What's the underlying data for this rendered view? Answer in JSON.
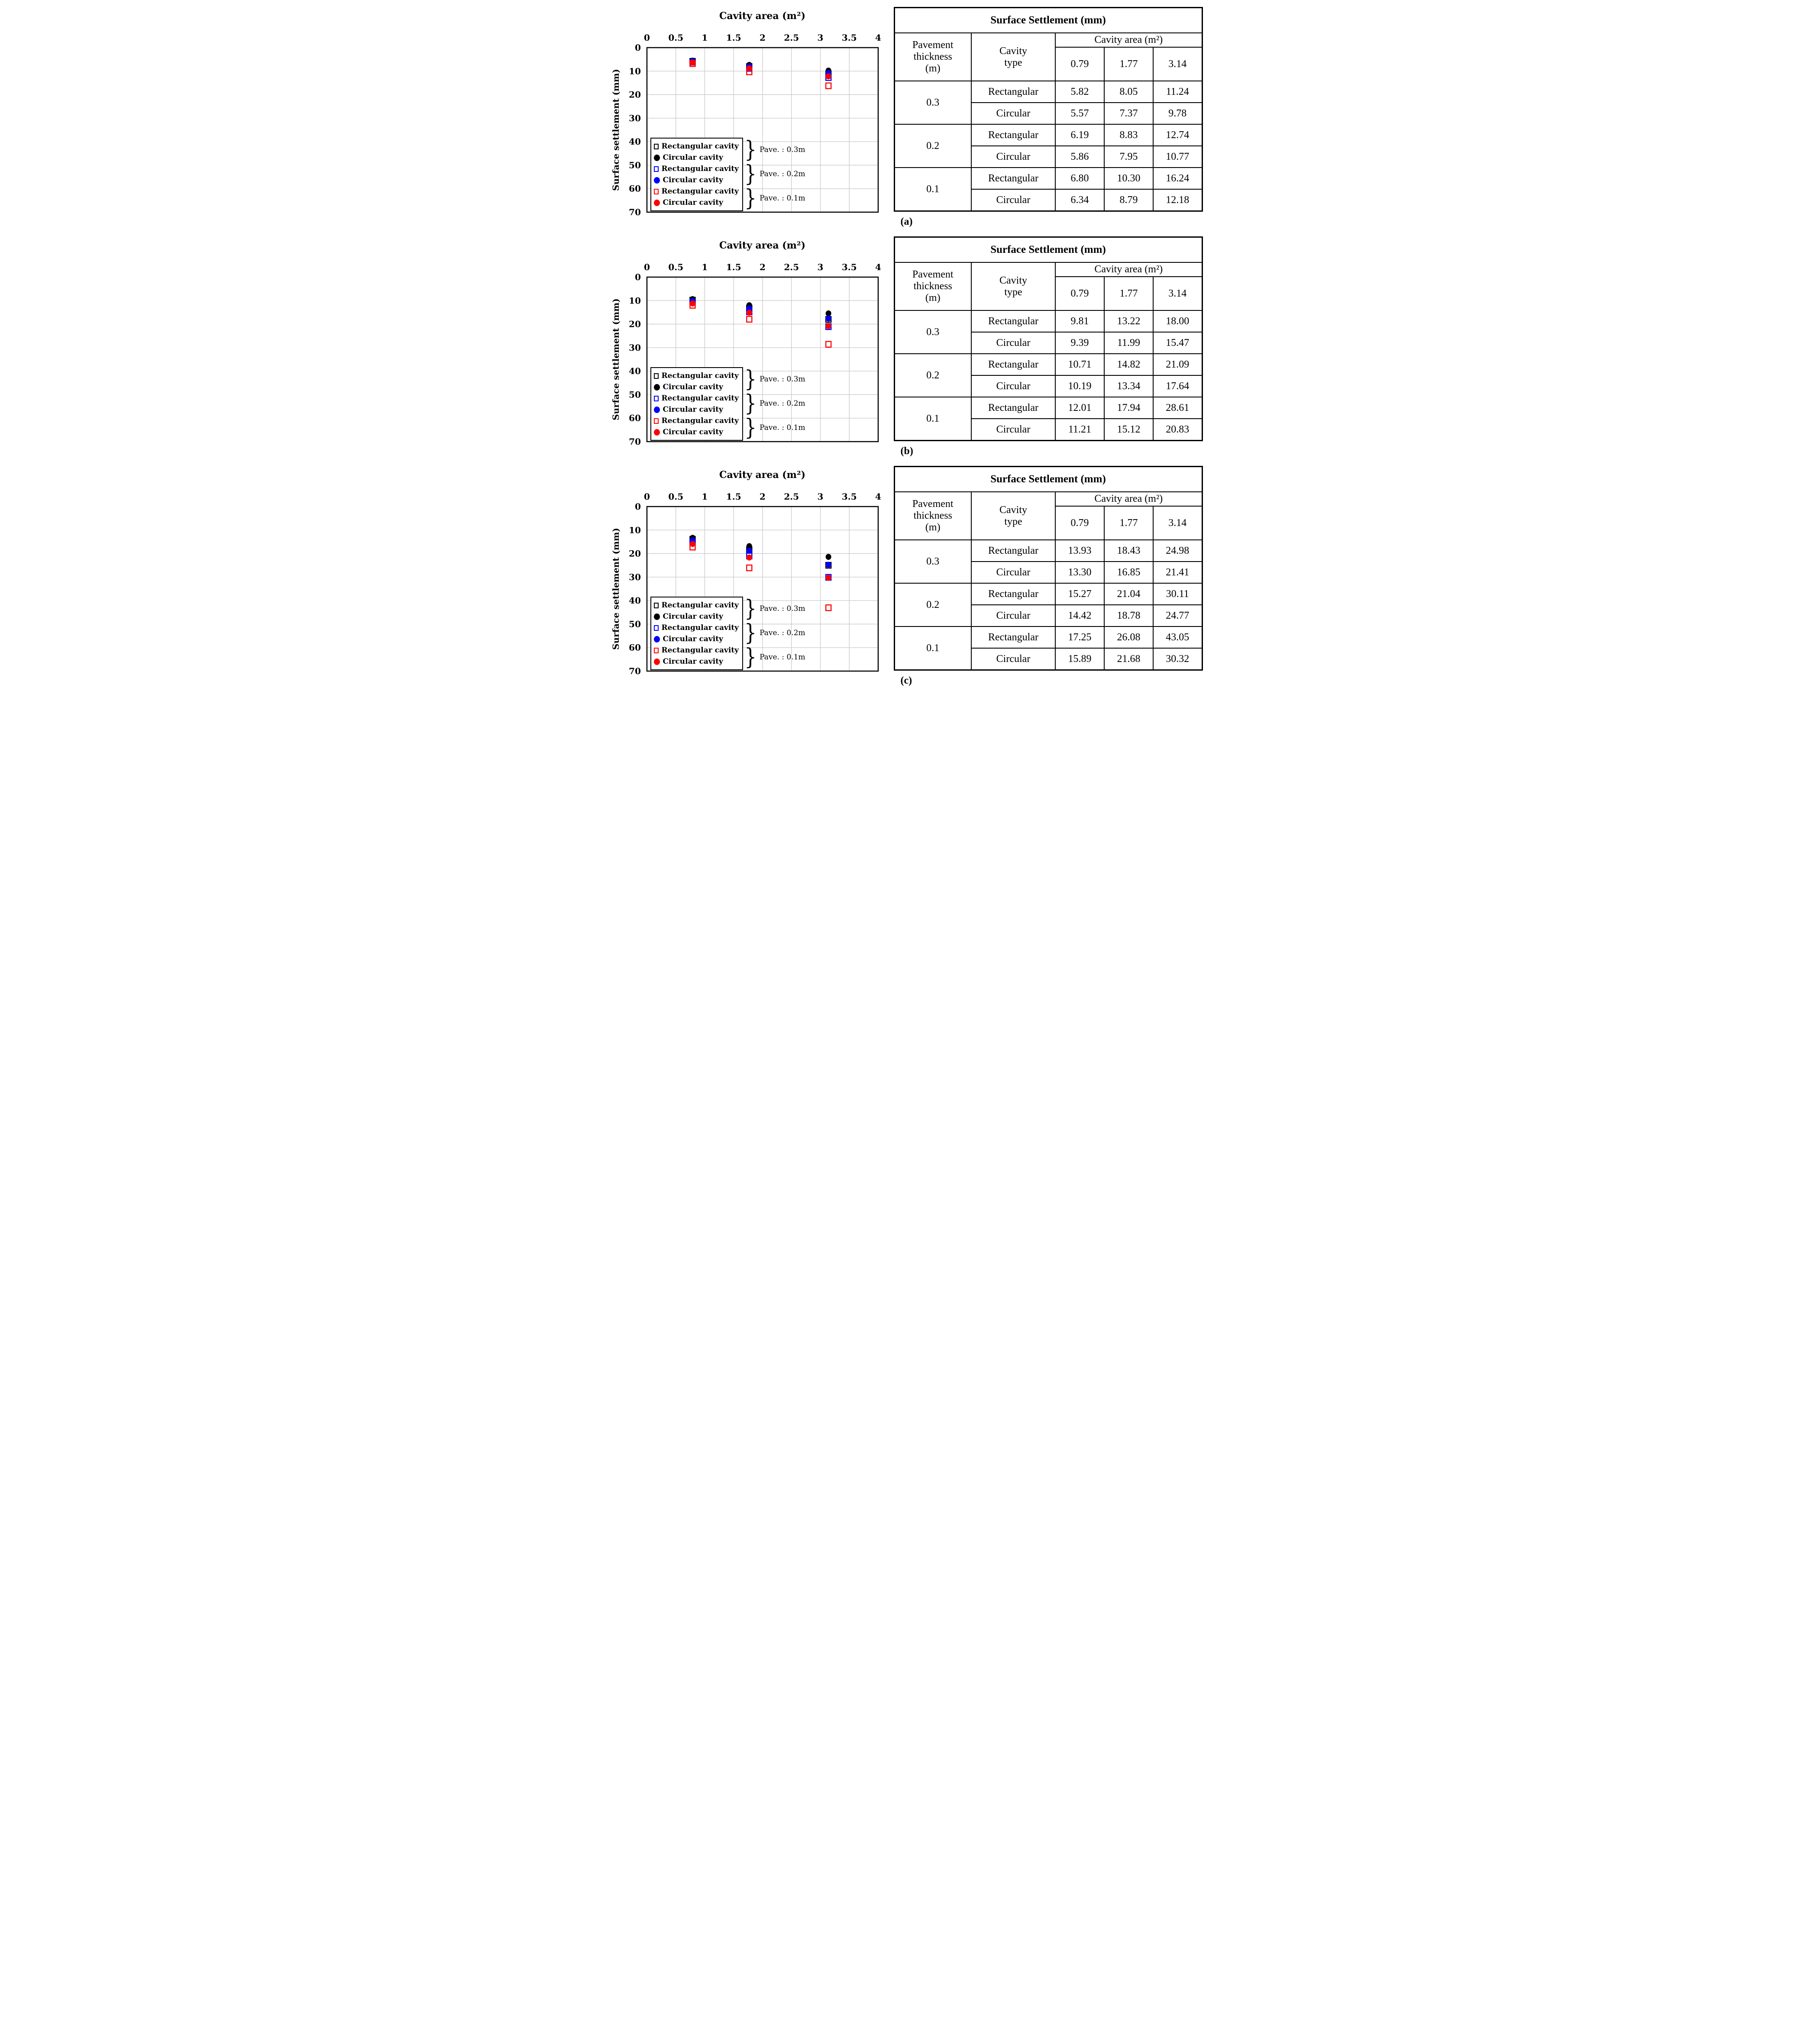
{
  "colors": {
    "black": "#000000",
    "blue": "#0000ff",
    "red": "#ff0000",
    "grid": "#c9c9c9",
    "axis": "#000000",
    "background": "#ffffff"
  },
  "chart_common": {
    "title": "Cavity area (m²)",
    "ylabel": "Surface settlement (mm)",
    "x_tick_labels": [
      "0",
      "0.5",
      "1",
      "1.5",
      "2",
      "2.5",
      "3",
      "3.5",
      "4"
    ],
    "y_tick_labels": [
      "0",
      "10",
      "20",
      "30",
      "40",
      "50",
      "60",
      "70"
    ],
    "xlim": [
      0,
      4
    ],
    "ylim": [
      0,
      70
    ],
    "y_axis_direction": "reversed",
    "grid": "on",
    "legend_position": "bottom-left",
    "legend": {
      "entries": [
        {
          "label": "Rectangular cavity",
          "marker": "square",
          "color": "#000000"
        },
        {
          "label": "Circular cavity",
          "marker": "circle",
          "color": "#000000"
        },
        {
          "label": "Rectangular cavity",
          "marker": "square",
          "color": "#0000ff"
        },
        {
          "label": "Circular cavity",
          "marker": "circle",
          "color": "#0000ff"
        },
        {
          "label": "Rectangular cavity",
          "marker": "square",
          "color": "#ff0000"
        },
        {
          "label": "Circular cavity",
          "marker": "circle",
          "color": "#ff0000"
        }
      ],
      "groups": [
        "Pave. : 0.3m",
        "Pave. : 0.2m",
        "Pave. : 0.1m"
      ]
    }
  },
  "chart_data": [
    {
      "id": "a",
      "type": "scatter",
      "x": [
        0.79,
        1.77,
        3.14
      ],
      "series": [
        {
          "name": "Rectangular cavity (Pave. 0.3m)",
          "marker": "square",
          "color": "#000000",
          "values": [
            5.82,
            8.05,
            11.24
          ]
        },
        {
          "name": "Circular cavity (Pave. 0.3m)",
          "marker": "circle",
          "color": "#000000",
          "values": [
            5.57,
            7.37,
            9.78
          ]
        },
        {
          "name": "Rectangular cavity (Pave. 0.2m)",
          "marker": "square",
          "color": "#0000ff",
          "values": [
            6.19,
            8.83,
            12.74
          ]
        },
        {
          "name": "Circular cavity (Pave. 0.2m)",
          "marker": "circle",
          "color": "#0000ff",
          "values": [
            5.86,
            7.95,
            10.77
          ]
        },
        {
          "name": "Rectangular cavity (Pave. 0.1m)",
          "marker": "square",
          "color": "#ff0000",
          "values": [
            6.8,
            10.3,
            16.24
          ]
        },
        {
          "name": "Circular cavity (Pave. 0.1m)",
          "marker": "circle",
          "color": "#ff0000",
          "values": [
            6.34,
            8.79,
            12.18
          ]
        }
      ]
    },
    {
      "id": "b",
      "type": "scatter",
      "x": [
        0.79,
        1.77,
        3.14
      ],
      "series": [
        {
          "name": "Rectangular cavity (Pave. 0.3m)",
          "marker": "square",
          "color": "#000000",
          "values": [
            9.81,
            13.22,
            18.0
          ]
        },
        {
          "name": "Circular cavity (Pave. 0.3m)",
          "marker": "circle",
          "color": "#000000",
          "values": [
            9.39,
            11.99,
            15.47
          ]
        },
        {
          "name": "Rectangular cavity (Pave. 0.2m)",
          "marker": "square",
          "color": "#0000ff",
          "values": [
            10.71,
            14.82,
            21.09
          ]
        },
        {
          "name": "Circular cavity (Pave. 0.2m)",
          "marker": "circle",
          "color": "#0000ff",
          "values": [
            10.19,
            13.34,
            17.64
          ]
        },
        {
          "name": "Rectangular cavity (Pave. 0.1m)",
          "marker": "square",
          "color": "#ff0000",
          "values": [
            12.01,
            17.94,
            28.61
          ]
        },
        {
          "name": "Circular cavity (Pave. 0.1m)",
          "marker": "circle",
          "color": "#ff0000",
          "values": [
            11.21,
            15.12,
            20.83
          ]
        }
      ]
    },
    {
      "id": "c",
      "type": "scatter",
      "x": [
        0.79,
        1.77,
        3.14
      ],
      "series": [
        {
          "name": "Rectangular cavity (Pave. 0.3m)",
          "marker": "square",
          "color": "#000000",
          "values": [
            13.93,
            18.43,
            24.98
          ]
        },
        {
          "name": "Circular cavity (Pave. 0.3m)",
          "marker": "circle",
          "color": "#000000",
          "values": [
            13.3,
            16.85,
            21.41
          ]
        },
        {
          "name": "Rectangular cavity (Pave. 0.2m)",
          "marker": "square",
          "color": "#0000ff",
          "values": [
            15.27,
            21.04,
            30.11
          ]
        },
        {
          "name": "Circular cavity (Pave. 0.2m)",
          "marker": "circle",
          "color": "#0000ff",
          "values": [
            14.42,
            18.78,
            24.77
          ]
        },
        {
          "name": "Rectangular cavity (Pave. 0.1m)",
          "marker": "square",
          "color": "#ff0000",
          "values": [
            17.25,
            26.08,
            43.05
          ]
        },
        {
          "name": "Circular cavity (Pave. 0.1m)",
          "marker": "circle",
          "color": "#ff0000",
          "values": [
            15.89,
            21.68,
            30.32
          ]
        }
      ]
    }
  ],
  "tables": [
    {
      "label": "(a)",
      "title": "Surface Settlement (mm)",
      "col1": "Pavement\nthickness\n(m)",
      "col2": "Cavity\ntype",
      "span": "Cavity area (m²)",
      "areas": [
        "0.79",
        "1.77",
        "3.14"
      ],
      "groups": [
        {
          "thickness": "0.3",
          "rows": [
            {
              "type": "Rectangular",
              "values": [
                "5.82",
                "8.05",
                "11.24"
              ]
            },
            {
              "type": "Circular",
              "values": [
                "5.57",
                "7.37",
                "9.78"
              ]
            }
          ]
        },
        {
          "thickness": "0.2",
          "rows": [
            {
              "type": "Rectangular",
              "values": [
                "6.19",
                "8.83",
                "12.74"
              ]
            },
            {
              "type": "Circular",
              "values": [
                "5.86",
                "7.95",
                "10.77"
              ]
            }
          ]
        },
        {
          "thickness": "0.1",
          "rows": [
            {
              "type": "Rectangular",
              "values": [
                "6.80",
                "10.30",
                "16.24"
              ]
            },
            {
              "type": "Circular",
              "values": [
                "6.34",
                "8.79",
                "12.18"
              ]
            }
          ]
        }
      ]
    },
    {
      "label": "(b)",
      "title": "Surface Settlement (mm)",
      "col1": "Pavement\nthickness\n(m)",
      "col2": "Cavity\ntype",
      "span": "Cavity area (m²)",
      "areas": [
        "0.79",
        "1.77",
        "3.14"
      ],
      "groups": [
        {
          "thickness": "0.3",
          "rows": [
            {
              "type": "Rectangular",
              "values": [
                "9.81",
                "13.22",
                "18.00"
              ]
            },
            {
              "type": "Circular",
              "values": [
                "9.39",
                "11.99",
                "15.47"
              ]
            }
          ]
        },
        {
          "thickness": "0.2",
          "rows": [
            {
              "type": "Rectangular",
              "values": [
                "10.71",
                "14.82",
                "21.09"
              ]
            },
            {
              "type": "Circular",
              "values": [
                "10.19",
                "13.34",
                "17.64"
              ]
            }
          ]
        },
        {
          "thickness": "0.1",
          "rows": [
            {
              "type": "Rectangular",
              "values": [
                "12.01",
                "17.94",
                "28.61"
              ]
            },
            {
              "type": "Circular",
              "values": [
                "11.21",
                "15.12",
                "20.83"
              ]
            }
          ]
        }
      ]
    },
    {
      "label": "(c)",
      "title": "Surface Settlement (mm)",
      "col1": "Pavement\nthickness\n(m)",
      "col2": "Cavity\ntype",
      "span": "Cavity area (m²)",
      "areas": [
        "0.79",
        "1.77",
        "3.14"
      ],
      "groups": [
        {
          "thickness": "0.3",
          "rows": [
            {
              "type": "Rectangular",
              "values": [
                "13.93",
                "18.43",
                "24.98"
              ]
            },
            {
              "type": "Circular",
              "values": [
                "13.30",
                "16.85",
                "21.41"
              ]
            }
          ]
        },
        {
          "thickness": "0.2",
          "rows": [
            {
              "type": "Rectangular",
              "values": [
                "15.27",
                "21.04",
                "30.11"
              ]
            },
            {
              "type": "Circular",
              "values": [
                "14.42",
                "18.78",
                "24.77"
              ]
            }
          ]
        },
        {
          "thickness": "0.1",
          "rows": [
            {
              "type": "Rectangular",
              "values": [
                "17.25",
                "26.08",
                "43.05"
              ]
            },
            {
              "type": "Circular",
              "values": [
                "15.89",
                "21.68",
                "30.32"
              ]
            }
          ]
        }
      ]
    }
  ]
}
